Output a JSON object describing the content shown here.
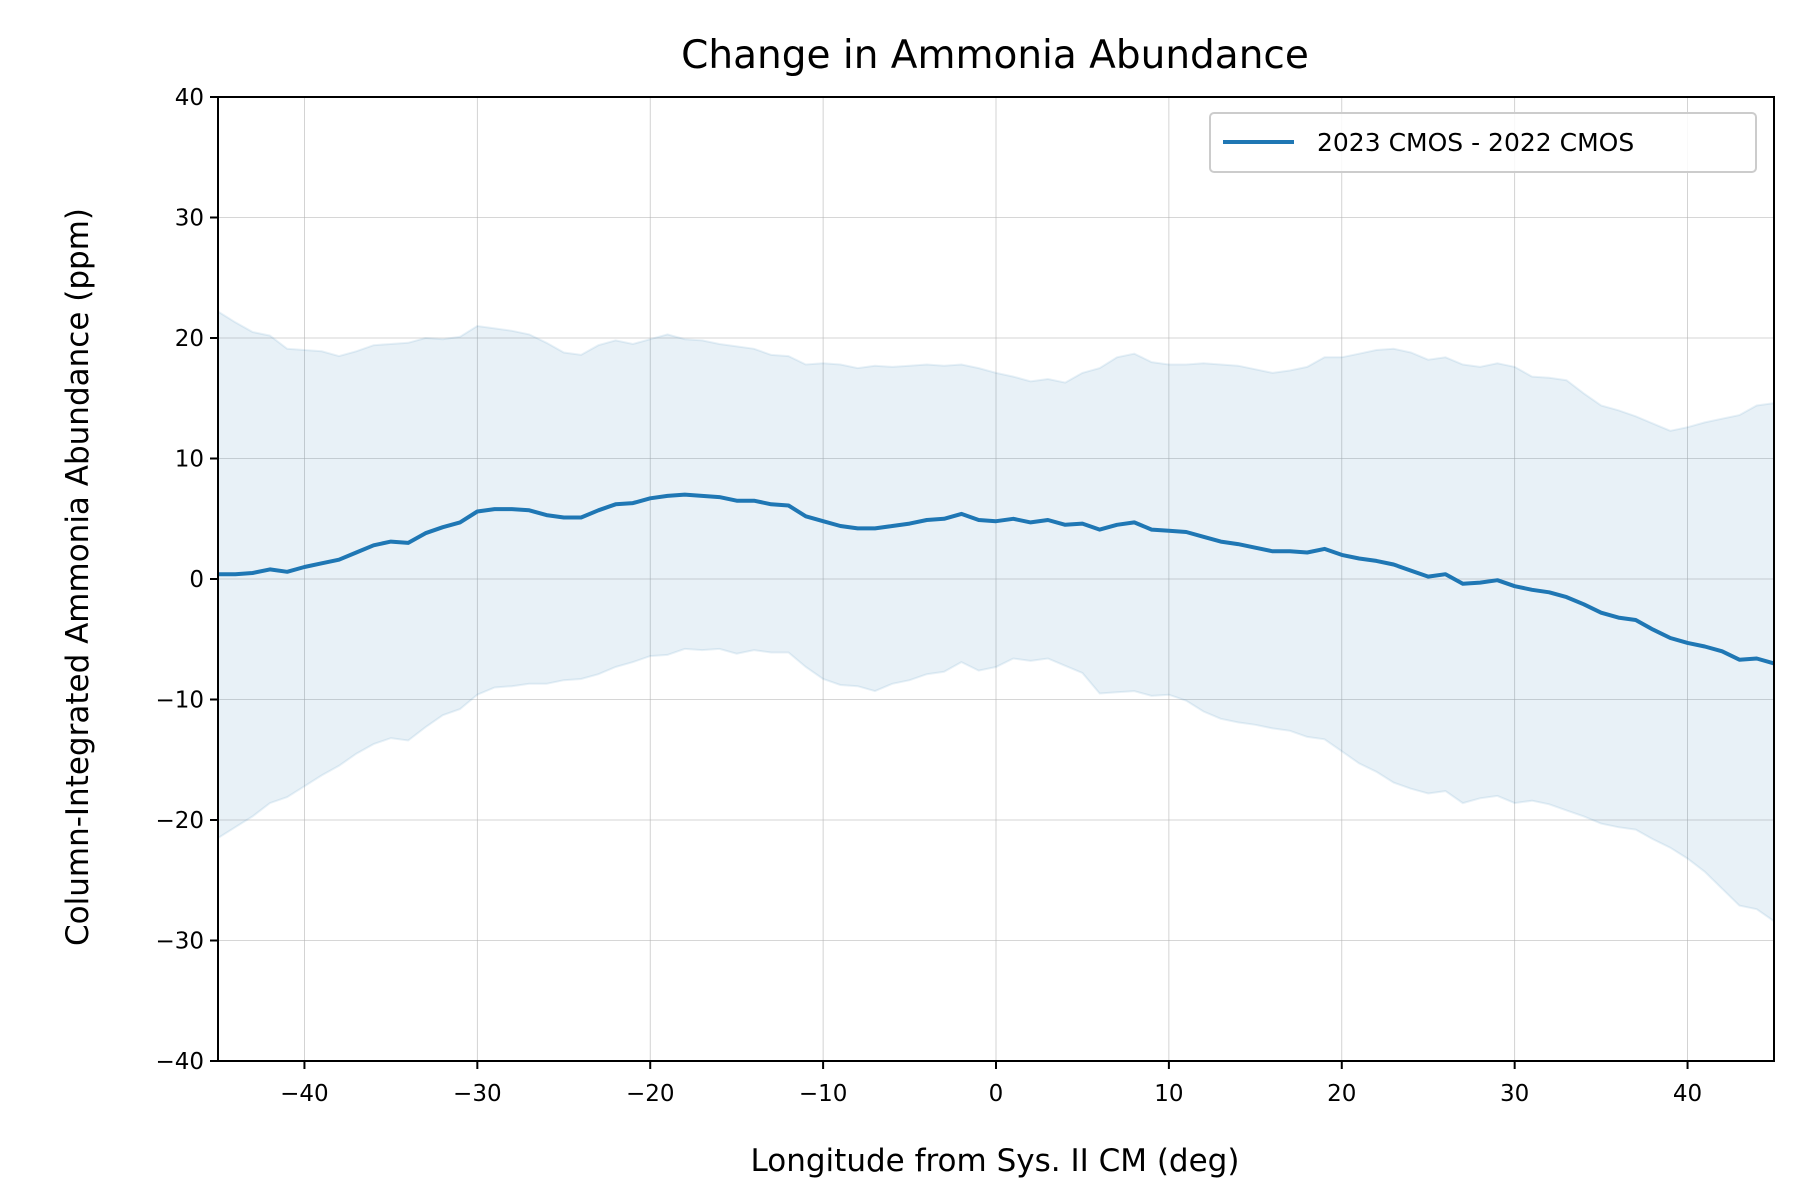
{
  "chart_data": {
    "type": "line",
    "title": "Change in Ammonia Abundance",
    "xlabel": "Longitude from Sys. II CM (deg)",
    "ylabel": "Column-Integrated Ammonia Abundance (ppm)",
    "xlim": [
      -45,
      45
    ],
    "ylim": [
      -40,
      40
    ],
    "xticks": [
      -40,
      -30,
      -20,
      -10,
      0,
      10,
      20,
      30,
      40
    ],
    "xtick_labels": [
      "−40",
      "−30",
      "−20",
      "−10",
      "0",
      "10",
      "20",
      "30",
      "40"
    ],
    "yticks": [
      -40,
      -30,
      -20,
      -10,
      0,
      10,
      20,
      30,
      40
    ],
    "ytick_labels": [
      "−40",
      "−30",
      "−20",
      "−10",
      "0",
      "10",
      "20",
      "30",
      "40"
    ],
    "grid": true,
    "legend_position": "top-right",
    "colors": {
      "line": "#1f77b4",
      "band": "#1f77b4",
      "grid": "#b0b0b0"
    },
    "series": [
      {
        "name": "2023 CMOS - 2022 CMOS",
        "x": [
          -45,
          -44,
          -43,
          -42,
          -41,
          -40,
          -39,
          -38,
          -37,
          -36,
          -35,
          -34,
          -33,
          -32,
          -31,
          -30,
          -29,
          -28,
          -27,
          -26,
          -25,
          -24,
          -23,
          -22,
          -21,
          -20,
          -19,
          -18,
          -17,
          -16,
          -15,
          -14,
          -13,
          -12,
          -11,
          -10,
          -9,
          -8,
          -7,
          -6,
          -5,
          -4,
          -3,
          -2,
          -1,
          0,
          1,
          2,
          3,
          4,
          5,
          6,
          7,
          8,
          9,
          10,
          11,
          12,
          13,
          14,
          15,
          16,
          17,
          18,
          19,
          20,
          21,
          22,
          23,
          24,
          25,
          26,
          27,
          28,
          29,
          30,
          31,
          32,
          33,
          34,
          35,
          36,
          37,
          38,
          39,
          40,
          41,
          42,
          43,
          44,
          45
        ],
        "y": [
          0.4,
          0.4,
          0.5,
          0.8,
          0.6,
          1.0,
          1.3,
          1.6,
          2.2,
          2.8,
          3.1,
          3.0,
          3.8,
          4.3,
          4.7,
          5.6,
          5.8,
          5.8,
          5.7,
          5.3,
          5.1,
          5.1,
          5.7,
          6.2,
          6.3,
          6.7,
          6.9,
          7.0,
          6.9,
          6.8,
          6.5,
          6.5,
          6.2,
          6.1,
          5.2,
          4.8,
          4.4,
          4.2,
          4.2,
          4.4,
          4.6,
          4.9,
          5.0,
          5.4,
          4.9,
          4.8,
          5.0,
          4.7,
          4.9,
          4.5,
          4.6,
          4.1,
          4.5,
          4.7,
          4.1,
          4.0,
          3.9,
          3.5,
          3.1,
          2.9,
          2.6,
          2.3,
          2.3,
          2.2,
          2.5,
          2.0,
          1.7,
          1.5,
          1.2,
          0.7,
          0.2,
          0.4,
          -0.4,
          -0.3,
          -0.1,
          -0.6,
          -0.9,
          -1.1,
          -1.5,
          -2.1,
          -2.8,
          -3.2,
          -3.4,
          -4.2,
          -4.9,
          -5.3,
          -5.6,
          -6.0,
          -6.7,
          -6.6,
          -7.0
        ],
        "lower": [
          -21.5,
          -20.6,
          -19.7,
          -18.6,
          -18.1,
          -17.2,
          -16.3,
          -15.5,
          -14.5,
          -13.7,
          -13.2,
          -13.4,
          -12.3,
          -11.3,
          -10.8,
          -9.6,
          -9.0,
          -8.9,
          -8.7,
          -8.7,
          -8.4,
          -8.3,
          -7.9,
          -7.3,
          -6.9,
          -6.4,
          -6.3,
          -5.8,
          -5.9,
          -5.8,
          -6.2,
          -5.9,
          -6.1,
          -6.1,
          -7.3,
          -8.3,
          -8.8,
          -8.9,
          -9.3,
          -8.7,
          -8.4,
          -7.9,
          -7.7,
          -6.9,
          -7.6,
          -7.3,
          -6.6,
          -6.8,
          -6.6,
          -7.2,
          -7.8,
          -9.5,
          -9.4,
          -9.3,
          -9.7,
          -9.6,
          -10.1,
          -11.0,
          -11.6,
          -11.9,
          -12.1,
          -12.4,
          -12.6,
          -13.1,
          -13.3,
          -14.3,
          -15.3,
          -16.0,
          -16.9,
          -17.4,
          -17.8,
          -17.6,
          -18.6,
          -18.2,
          -18.0,
          -18.6,
          -18.4,
          -18.7,
          -19.2,
          -19.7,
          -20.3,
          -20.6,
          -20.8,
          -21.6,
          -22.3,
          -23.2,
          -24.3,
          -25.7,
          -27.1,
          -27.4,
          -28.4
        ],
        "upper": [
          22.2,
          21.3,
          20.5,
          20.2,
          19.1,
          19.0,
          18.9,
          18.5,
          18.9,
          19.4,
          19.5,
          19.6,
          20.0,
          19.9,
          20.1,
          21.0,
          20.8,
          20.6,
          20.3,
          19.6,
          18.8,
          18.6,
          19.4,
          19.8,
          19.5,
          19.9,
          20.3,
          19.9,
          19.8,
          19.5,
          19.3,
          19.1,
          18.6,
          18.5,
          17.8,
          17.9,
          17.8,
          17.5,
          17.7,
          17.6,
          17.7,
          17.8,
          17.7,
          17.8,
          17.5,
          17.1,
          16.8,
          16.4,
          16.6,
          16.3,
          17.1,
          17.5,
          18.4,
          18.7,
          18.0,
          17.8,
          17.8,
          17.9,
          17.8,
          17.7,
          17.4,
          17.1,
          17.3,
          17.6,
          18.4,
          18.4,
          18.7,
          19.0,
          19.1,
          18.8,
          18.2,
          18.4,
          17.8,
          17.6,
          17.9,
          17.6,
          16.8,
          16.7,
          16.5,
          15.4,
          14.4,
          14.0,
          13.5,
          12.9,
          12.3,
          12.6,
          13.0,
          13.3,
          13.6,
          14.4,
          14.6
        ]
      }
    ]
  }
}
